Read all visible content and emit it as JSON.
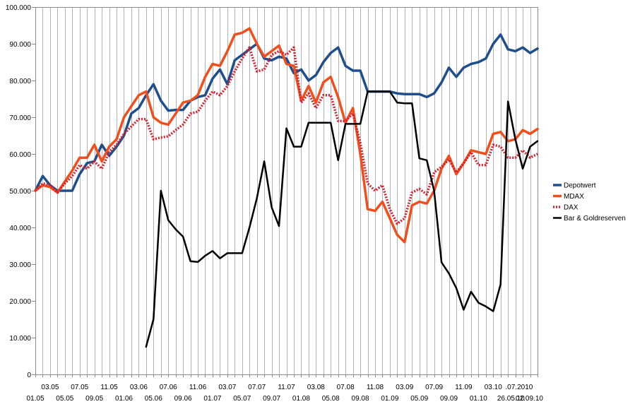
{
  "chart_data": {
    "type": "line",
    "title": "",
    "xlabel": "",
    "ylabel": "",
    "ylim": [
      0,
      100000
    ],
    "yticks": [
      0,
      10000,
      20000,
      30000,
      40000,
      50000,
      60000,
      70000,
      80000,
      90000,
      100000
    ],
    "ytick_labels": [
      "0",
      "10.000",
      "20.000",
      "30.000",
      "40.000",
      "50.000",
      "60.000",
      "70.000",
      "80.000",
      "90.000",
      "100.000"
    ],
    "grid": "vertical",
    "legend_position": "right",
    "x_upper_labels": [
      {
        "label": "03.05",
        "i": 2
      },
      {
        "label": "07.05",
        "i": 6
      },
      {
        "label": "11.05",
        "i": 10
      },
      {
        "label": "03.06",
        "i": 14
      },
      {
        "label": "07.06",
        "i": 18
      },
      {
        "label": "11.06",
        "i": 22
      },
      {
        "label": "03.07",
        "i": 26
      },
      {
        "label": "07.07",
        "i": 30
      },
      {
        "label": "11.07",
        "i": 34
      },
      {
        "label": "03.08",
        "i": 38
      },
      {
        "label": "07.08",
        "i": 42
      },
      {
        "label": "11.08",
        "i": 46
      },
      {
        "label": "03.09",
        "i": 50
      },
      {
        "label": "07.09",
        "i": 54
      },
      {
        "label": "11.09",
        "i": 58
      },
      {
        "label": "03.10",
        "i": 62
      },
      {
        "label": ".07.2010",
        "i": 65.5
      }
    ],
    "x_lower_labels": [
      {
        "label": "01.05",
        "i": 0
      },
      {
        "label": "05.05",
        "i": 4
      },
      {
        "label": "09.05",
        "i": 8
      },
      {
        "label": "01.06",
        "i": 12
      },
      {
        "label": "05.06",
        "i": 16
      },
      {
        "label": "09.06",
        "i": 20
      },
      {
        "label": "01.07",
        "i": 24
      },
      {
        "label": "05.07",
        "i": 28
      },
      {
        "label": "09.07",
        "i": 32
      },
      {
        "label": "01.08",
        "i": 36
      },
      {
        "label": "05.08",
        "i": 40
      },
      {
        "label": "09.08",
        "i": 44
      },
      {
        "label": "01.09",
        "i": 48
      },
      {
        "label": "05.09",
        "i": 52
      },
      {
        "label": "09.09",
        "i": 56
      },
      {
        "label": "01.10",
        "i": 60
      },
      {
        "label": "26.05.10",
        "i": 64.4
      },
      {
        "label": "02.09.10",
        "i": 66.9
      }
    ],
    "series": [
      {
        "name": "Depotwert",
        "color": "#1f4e8c",
        "style": "solid",
        "width": 3.5,
        "points": [
          [
            0,
            50000
          ],
          [
            1,
            54000
          ],
          [
            2,
            51500
          ],
          [
            3,
            50000
          ],
          [
            4,
            50000
          ],
          [
            5,
            50000
          ],
          [
            6,
            54500
          ],
          [
            7,
            57500
          ],
          [
            8,
            58000
          ],
          [
            9,
            62500
          ],
          [
            10,
            59500
          ],
          [
            11,
            62000
          ],
          [
            12,
            65000
          ],
          [
            13,
            71000
          ],
          [
            14,
            72500
          ],
          [
            15,
            76000
          ],
          [
            16,
            79000
          ],
          [
            17,
            74500
          ],
          [
            18,
            71800
          ],
          [
            19,
            72000
          ],
          [
            20,
            72000
          ],
          [
            21,
            74500
          ],
          [
            22,
            75500
          ],
          [
            23,
            76000
          ],
          [
            24,
            80500
          ],
          [
            25,
            83000
          ],
          [
            26,
            79000
          ],
          [
            27,
            85500
          ],
          [
            28,
            87000
          ],
          [
            29,
            88500
          ],
          [
            30,
            90000
          ],
          [
            31,
            86000
          ],
          [
            32,
            85500
          ],
          [
            33,
            86500
          ],
          [
            34,
            86000
          ],
          [
            35,
            82000
          ],
          [
            36,
            83000
          ],
          [
            37,
            80000
          ],
          [
            38,
            81500
          ],
          [
            39,
            85000
          ],
          [
            40,
            87500
          ],
          [
            41,
            89000
          ],
          [
            42,
            84000
          ],
          [
            43,
            82700
          ],
          [
            44,
            82700
          ],
          [
            45,
            77000
          ],
          [
            46,
            77000
          ],
          [
            47,
            77000
          ],
          [
            48,
            77000
          ],
          [
            49,
            76500
          ],
          [
            50,
            76300
          ],
          [
            51,
            76300
          ],
          [
            52,
            76300
          ],
          [
            53,
            75500
          ],
          [
            54,
            76500
          ],
          [
            55,
            79500
          ],
          [
            56,
            83500
          ],
          [
            57,
            81000
          ],
          [
            58,
            83500
          ],
          [
            59,
            84500
          ],
          [
            60,
            85000
          ],
          [
            61,
            86000
          ],
          [
            62,
            90000
          ],
          [
            63,
            92500
          ],
          [
            64,
            88500
          ],
          [
            65,
            88000
          ],
          [
            66,
            89000
          ],
          [
            67,
            87500
          ],
          [
            68,
            88700
          ]
        ]
      },
      {
        "name": "MDAX",
        "color": "#f04e1c",
        "style": "solid",
        "width": 3.5,
        "points": [
          [
            0,
            50000
          ],
          [
            1,
            51500
          ],
          [
            2,
            51000
          ],
          [
            3,
            49500
          ],
          [
            4,
            52500
          ],
          [
            5,
            55500
          ],
          [
            6,
            59000
          ],
          [
            7,
            59000
          ],
          [
            8,
            62500
          ],
          [
            9,
            58000
          ],
          [
            10,
            62000
          ],
          [
            11,
            64000
          ],
          [
            12,
            70000
          ],
          [
            13,
            73000
          ],
          [
            14,
            76000
          ],
          [
            15,
            77000
          ],
          [
            16,
            70000
          ],
          [
            17,
            68500
          ],
          [
            18,
            68000
          ],
          [
            19,
            71000
          ],
          [
            20,
            74000
          ],
          [
            21,
            74500
          ],
          [
            22,
            76000
          ],
          [
            23,
            81000
          ],
          [
            24,
            84500
          ],
          [
            25,
            84000
          ],
          [
            26,
            88000
          ],
          [
            27,
            92500
          ],
          [
            28,
            93000
          ],
          [
            29,
            94200
          ],
          [
            30,
            90000
          ],
          [
            31,
            86500
          ],
          [
            32,
            88000
          ],
          [
            33,
            89500
          ],
          [
            34,
            84500
          ],
          [
            35,
            84000
          ],
          [
            36,
            74500
          ],
          [
            37,
            78500
          ],
          [
            38,
            74000
          ],
          [
            39,
            79500
          ],
          [
            40,
            81000
          ],
          [
            41,
            75500
          ],
          [
            42,
            68500
          ],
          [
            43,
            72500
          ],
          [
            44,
            60000
          ],
          [
            45,
            45000
          ],
          [
            46,
            44500
          ],
          [
            47,
            47000
          ],
          [
            48,
            42500
          ],
          [
            49,
            38000
          ],
          [
            50,
            36000
          ],
          [
            51,
            46000
          ],
          [
            52,
            47000
          ],
          [
            53,
            46500
          ],
          [
            54,
            50000
          ],
          [
            55,
            56000
          ],
          [
            56,
            59500
          ],
          [
            57,
            54500
          ],
          [
            58,
            57500
          ],
          [
            59,
            61000
          ],
          [
            60,
            60500
          ],
          [
            61,
            60000
          ],
          [
            62,
            65500
          ],
          [
            63,
            66000
          ],
          [
            64,
            63500
          ],
          [
            65,
            64000
          ],
          [
            66,
            66500
          ],
          [
            67,
            65500
          ],
          [
            68,
            66800
          ]
        ]
      },
      {
        "name": "DAX",
        "color": "#d6202e",
        "style": "dotted",
        "width": 3.5,
        "points": [
          [
            0,
            50000
          ],
          [
            1,
            52000
          ],
          [
            2,
            51500
          ],
          [
            3,
            49500
          ],
          [
            4,
            52000
          ],
          [
            5,
            54000
          ],
          [
            6,
            57000
          ],
          [
            7,
            56000
          ],
          [
            8,
            58000
          ],
          [
            9,
            56000
          ],
          [
            10,
            60500
          ],
          [
            11,
            62500
          ],
          [
            12,
            65500
          ],
          [
            13,
            67500
          ],
          [
            14,
            69500
          ],
          [
            15,
            69500
          ],
          [
            16,
            64000
          ],
          [
            17,
            64500
          ],
          [
            18,
            64800
          ],
          [
            19,
            66500
          ],
          [
            20,
            68000
          ],
          [
            21,
            71000
          ],
          [
            22,
            71500
          ],
          [
            23,
            74500
          ],
          [
            24,
            77000
          ],
          [
            25,
            76000
          ],
          [
            26,
            78500
          ],
          [
            27,
            82500
          ],
          [
            28,
            86000
          ],
          [
            29,
            89000
          ],
          [
            30,
            82500
          ],
          [
            31,
            83000
          ],
          [
            32,
            87000
          ],
          [
            33,
            88000
          ],
          [
            34,
            87000
          ],
          [
            35,
            89000
          ],
          [
            36,
            74000
          ],
          [
            37,
            76500
          ],
          [
            38,
            72500
          ],
          [
            39,
            76000
          ],
          [
            40,
            76000
          ],
          [
            41,
            69000
          ],
          [
            42,
            69000
          ],
          [
            43,
            71000
          ],
          [
            44,
            63000
          ],
          [
            45,
            52000
          ],
          [
            46,
            50000
          ],
          [
            47,
            51500
          ],
          [
            48,
            45000
          ],
          [
            49,
            41000
          ],
          [
            50,
            42500
          ],
          [
            51,
            49500
          ],
          [
            52,
            50500
          ],
          [
            53,
            49000
          ],
          [
            54,
            55000
          ],
          [
            55,
            56500
          ],
          [
            56,
            58500
          ],
          [
            57,
            55000
          ],
          [
            58,
            57500
          ],
          [
            59,
            60500
          ],
          [
            60,
            57000
          ],
          [
            61,
            57000
          ],
          [
            62,
            62500
          ],
          [
            63,
            62000
          ],
          [
            64,
            59000
          ],
          [
            65,
            59000
          ],
          [
            66,
            61000
          ],
          [
            67,
            59000
          ],
          [
            68,
            60000
          ]
        ]
      },
      {
        "name": "Bar & Goldreserven",
        "color": "#000000",
        "style": "solid",
        "width": 2.5,
        "points": [
          [
            15,
            7500
          ],
          [
            16,
            15000
          ],
          [
            17,
            50000
          ],
          [
            18,
            42000
          ],
          [
            19,
            39500
          ],
          [
            20,
            37500
          ],
          [
            21,
            30800
          ],
          [
            22,
            30600
          ],
          [
            23,
            32300
          ],
          [
            24,
            33600
          ],
          [
            25,
            31600
          ],
          [
            26,
            33000
          ],
          [
            27,
            33000
          ],
          [
            28,
            33000
          ],
          [
            29,
            40000
          ],
          [
            30,
            48000
          ],
          [
            31,
            58000
          ],
          [
            32,
            45500
          ],
          [
            33,
            40400
          ],
          [
            34,
            67000
          ],
          [
            35,
            62000
          ],
          [
            36,
            62000
          ],
          [
            37,
            68500
          ],
          [
            38,
            68500
          ],
          [
            39,
            68500
          ],
          [
            40,
            68500
          ],
          [
            41,
            58300
          ],
          [
            42,
            68200
          ],
          [
            43,
            68200
          ],
          [
            44,
            68200
          ],
          [
            45,
            77000
          ],
          [
            46,
            77000
          ],
          [
            47,
            77000
          ],
          [
            48,
            77000
          ],
          [
            49,
            74000
          ],
          [
            50,
            73800
          ],
          [
            51,
            73800
          ],
          [
            52,
            58800
          ],
          [
            53,
            58300
          ],
          [
            54,
            50000
          ],
          [
            55,
            30500
          ],
          [
            56,
            27500
          ],
          [
            57,
            23500
          ],
          [
            58,
            17600
          ],
          [
            59,
            22500
          ],
          [
            60,
            19500
          ],
          [
            61,
            18500
          ],
          [
            62,
            17200
          ],
          [
            63,
            24500
          ],
          [
            64,
            74300
          ],
          [
            65,
            64000
          ],
          [
            66,
            56000
          ],
          [
            67,
            62000
          ],
          [
            68,
            63500
          ]
        ]
      }
    ]
  }
}
